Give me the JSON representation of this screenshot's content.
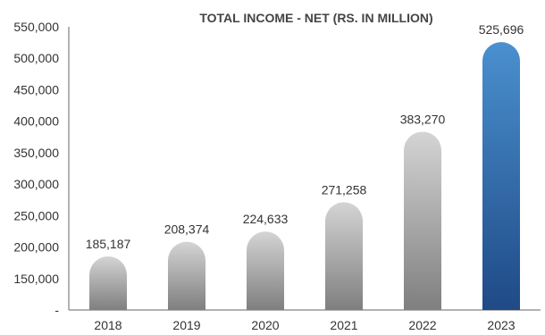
{
  "chart_data": {
    "type": "bar",
    "title": "TOTAL INCOME - NET (RS. IN MILLION)",
    "xlabel": "",
    "ylabel": "",
    "categories": [
      "2018",
      "2019",
      "2020",
      "2021",
      "2022",
      "2023"
    ],
    "values": [
      185187,
      208374,
      224633,
      271258,
      383270,
      525696
    ],
    "value_labels": [
      "185,187",
      "208,374",
      "224,633",
      "271,258",
      "383,270",
      "525,696"
    ],
    "ylim": [
      100000,
      550000
    ],
    "y_ticks": [
      100000,
      150000,
      200000,
      250000,
      300000,
      350000,
      400000,
      450000,
      500000,
      550000
    ],
    "y_tick_labels": [
      "-",
      "150,000",
      "200,000",
      "250,000",
      "300,000",
      "350,000",
      "400,000",
      "450,000",
      "500,000",
      "550,000"
    ],
    "grid": false,
    "legend": "none",
    "colors": {
      "bar_default_top": "#d4d4d4",
      "bar_default_bottom": "#7f7f7f",
      "bar_highlight_top": "#4a90cf",
      "bar_highlight_bottom": "#1f4a86"
    },
    "highlight_index": 5
  }
}
